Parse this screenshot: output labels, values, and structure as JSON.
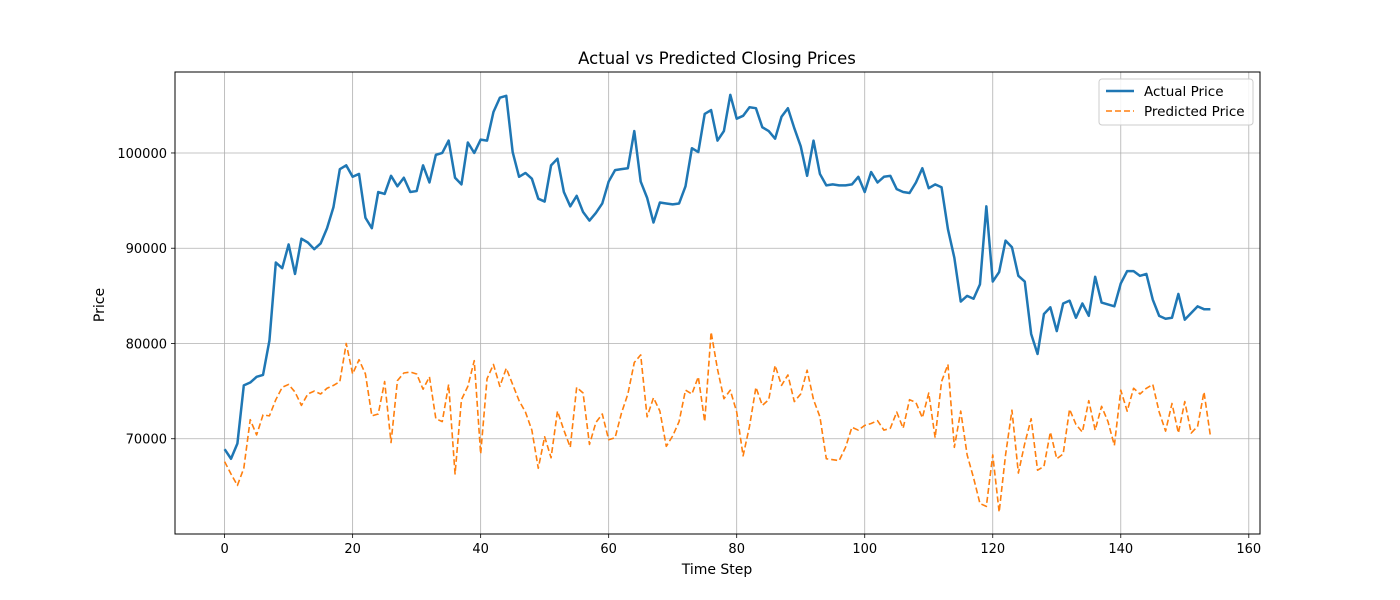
{
  "chart_data": {
    "type": "line",
    "title": "Actual vs Predicted Closing Prices",
    "xlabel": "Time Step",
    "ylabel": "Price",
    "xlim": [
      -7.75,
      161.75
    ],
    "ylim": [
      60000,
      108500
    ],
    "xticks": [
      0,
      20,
      40,
      60,
      80,
      100,
      120,
      140,
      160
    ],
    "yticks": [
      70000,
      80000,
      90000,
      100000
    ],
    "grid": true,
    "legend_position": "upper right",
    "series": [
      {
        "name": "Actual Price",
        "color": "#1f77b4",
        "style": "solid",
        "x_start": 0,
        "values": [
          68900,
          67900,
          69500,
          75600,
          75900,
          76500,
          76700,
          80300,
          88500,
          87900,
          90400,
          87300,
          91000,
          90600,
          89900,
          90500,
          92100,
          94300,
          98300,
          98700,
          97500,
          97800,
          93200,
          92100,
          95900,
          95700,
          97600,
          96500,
          97400,
          95900,
          96000,
          98700,
          96900,
          99800,
          100000,
          101300,
          97400,
          96700,
          101100,
          100000,
          101400,
          101300,
          104300,
          105800,
          106000,
          100100,
          97500,
          97900,
          97300,
          95200,
          94900,
          98700,
          99400,
          95900,
          94400,
          95500,
          93800,
          92900,
          93700,
          94700,
          97000,
          98200,
          98300,
          98400,
          102300,
          97000,
          95300,
          92700,
          94800,
          94700,
          94600,
          94700,
          96500,
          100500,
          100100,
          104100,
          104500,
          101300,
          102300,
          106100,
          103600,
          103900,
          104800,
          104700,
          102700,
          102300,
          101500,
          103800,
          104700,
          102600,
          100700,
          97600,
          101300,
          97800,
          96600,
          96700,
          96600,
          96600,
          96700,
          97500,
          95900,
          98000,
          96900,
          97500,
          97600,
          96200,
          95900,
          95800,
          96900,
          98400,
          96300,
          96700,
          96400,
          92000,
          89000,
          84400,
          85000,
          84700,
          86200,
          94400,
          86500,
          87500,
          90800,
          90100,
          87100,
          86500,
          81000,
          78900,
          83100,
          83800,
          81300,
          84200,
          84500,
          82700,
          84200,
          82900,
          87000,
          84300,
          84100,
          83900,
          86300,
          87600,
          87600,
          87100,
          87300,
          84600,
          82900,
          82600,
          82700,
          85200,
          82500,
          83200,
          83900,
          83600,
          83600
        ]
      },
      {
        "name": "Predicted Price",
        "color": "#ff7f0e",
        "style": "dashed",
        "x_start": 0,
        "values": [
          67600,
          66300,
          65100,
          66900,
          72000,
          70400,
          72500,
          72400,
          74100,
          75400,
          75700,
          74900,
          73500,
          74700,
          75000,
          74700,
          75300,
          75600,
          76000,
          80000,
          76800,
          78300,
          76800,
          72400,
          72600,
          76000,
          69600,
          76100,
          76900,
          77000,
          76800,
          75200,
          76500,
          72100,
          71800,
          75700,
          66300,
          74100,
          75500,
          78200,
          68400,
          76300,
          77800,
          75500,
          77400,
          75700,
          74000,
          72800,
          70900,
          66900,
          70200,
          68000,
          72900,
          70900,
          69100,
          75400,
          74800,
          69400,
          71700,
          72600,
          69900,
          70100,
          72700,
          74700,
          78000,
          78800,
          72300,
          74300,
          72900,
          69200,
          70300,
          71800,
          75100,
          74700,
          76500,
          71800,
          81200,
          77300,
          74200,
          75100,
          72800,
          68200,
          71300,
          75400,
          73500,
          74100,
          77700,
          75600,
          76700,
          73900,
          74700,
          77200,
          74100,
          72300,
          67900,
          67800,
          67700,
          69100,
          71200,
          70900,
          71400,
          71600,
          71900,
          70900,
          71100,
          72800,
          71100,
          74100,
          73800,
          72200,
          74800,
          70100,
          76000,
          77800,
          69100,
          72900,
          68300,
          65900,
          63200,
          62900,
          68300,
          62300,
          68300,
          73000,
          66400,
          69500,
          72100,
          66700,
          67100,
          70700,
          67900,
          68400,
          73100,
          71500,
          70700,
          74000,
          70900,
          73400,
          71800,
          69300,
          75100,
          72900,
          75300,
          74700,
          75300,
          75700,
          72800,
          70800,
          73700,
          70600,
          73900,
          70600,
          71300,
          74900,
          70300
        ]
      }
    ]
  }
}
